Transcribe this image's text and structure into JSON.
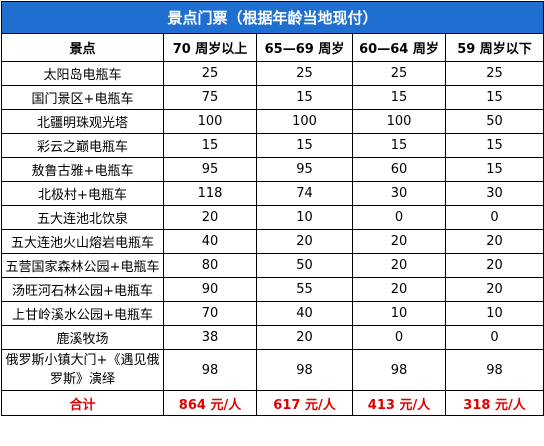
{
  "title": "景点门票（根据年龄当地现付）",
  "headers": [
    "景点",
    "70 周岁以上",
    "65—69 周岁",
    "60—64 周岁",
    "59 周岁以下"
  ],
  "rows": [
    [
      "太阳岛电瓶车",
      "25",
      "25",
      "25",
      "25"
    ],
    [
      "国门景区+电瓶车",
      "75",
      "15",
      "15",
      "15"
    ],
    [
      "北疆明珠观光塔",
      "100",
      "100",
      "100",
      "50"
    ],
    [
      "彩云之巅电瓶车",
      "15",
      "15",
      "15",
      "15"
    ],
    [
      "敖鲁古雅+电瓶车",
      "95",
      "95",
      "60",
      "15"
    ],
    [
      "北极村+电瓶车",
      "118",
      "74",
      "30",
      "30"
    ],
    [
      "五大连池北饮泉",
      "20",
      "10",
      "0",
      "0"
    ],
    [
      "五大连池火山熔岩电瓶车",
      "40",
      "20",
      "20",
      "20"
    ],
    [
      "五营国家森林公园+电瓶车",
      "80",
      "50",
      "20",
      "20"
    ],
    [
      "汤旺河石林公园+电瓶车",
      "90",
      "55",
      "20",
      "20"
    ],
    [
      "上甘岭溪水公园+电瓶车",
      "70",
      "40",
      "10",
      "10"
    ],
    [
      "鹿溪牧场",
      "38",
      "20",
      "0",
      "0"
    ],
    [
      "俄罗斯小镇大门+《遇见俄罗斯》演绎",
      "98",
      "98",
      "98",
      "98"
    ]
  ],
  "total": [
    "合计",
    "864 元/人",
    "617 元/人",
    "413 元/人",
    "318 元/人"
  ],
  "colors": {
    "title_bg": "#1f6fd0",
    "title_text": "#ffffff",
    "total_text": "#e00000",
    "border": "#000000"
  }
}
